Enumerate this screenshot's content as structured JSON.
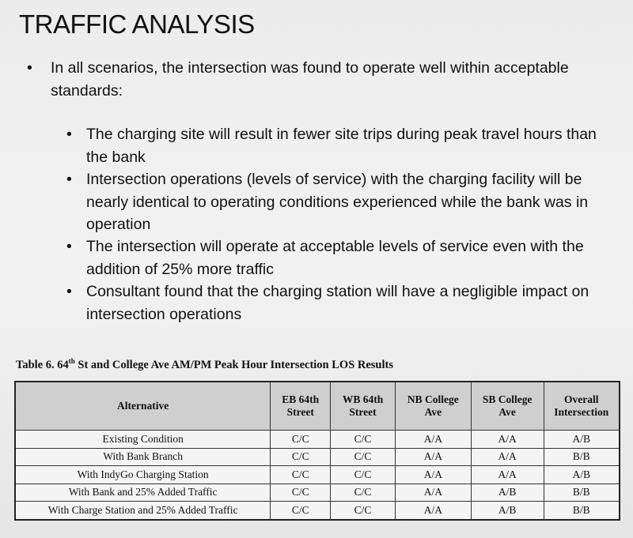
{
  "title": "TRAFFIC ANALYSIS",
  "main_bullet": "In all scenarios, the intersection was found to operate well within acceptable standards:",
  "sub_bullets": [
    "The charging site will result in fewer site trips during peak travel hours than the bank",
    "Intersection operations (levels of service) with the charging facility will be nearly identical to operating conditions experienced while the bank was in operation",
    "The intersection will operate at acceptable levels of service even with the addition of 25% more traffic",
    "Consultant found that the charging station will have a negligible impact on intersection operations"
  ],
  "table": {
    "caption_pre": "Table 6. 64",
    "caption_sup": "th",
    "caption_post": " St and College Ave AM/PM Peak Hour Intersection LOS Results",
    "headers": [
      "Alternative",
      "EB 64th Street",
      "WB 64th Street",
      "NB College Ave",
      "SB College Ave",
      "Overall Intersection"
    ],
    "rows": [
      [
        "Existing Condition",
        "C/C",
        "C/C",
        "A/A",
        "A/A",
        "A/B"
      ],
      [
        "With Bank Branch",
        "C/C",
        "C/C",
        "A/A",
        "A/A",
        "B/B"
      ],
      [
        "With IndyGo Charging Station",
        "C/C",
        "C/C",
        "A/A",
        "A/A",
        "A/B"
      ],
      [
        "With Bank and 25% Added Traffic",
        "C/C",
        "C/C",
        "A/A",
        "A/B",
        "B/B"
      ],
      [
        "With Charge Station and 25% Added Traffic",
        "C/C",
        "C/C",
        "A/A",
        "A/B",
        "B/B"
      ]
    ]
  }
}
